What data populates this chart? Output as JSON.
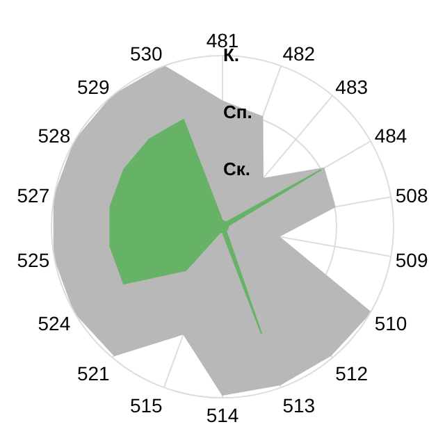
{
  "chart_data": {
    "type": "radar",
    "categories": [
      "481",
      "482",
      "483",
      "484",
      "508",
      "509",
      "510",
      "512",
      "513",
      "514",
      "515",
      "521",
      "524",
      "525",
      "527",
      "528",
      "529",
      "530"
    ],
    "series": [
      {
        "color": "#b8b8b8",
        "values": [
          2.2,
          2.05,
          1.1,
          2.05,
          2.0,
          1.0,
          3.0,
          2.95,
          2.95,
          2.95,
          2.0,
          2.95,
          3.0,
          3.0,
          3.0,
          3.0,
          3.0,
          3.0
        ]
      },
      {
        "color": "#66b266",
        "values": [
          0.1,
          0.1,
          0.1,
          2.0,
          0.1,
          0.1,
          0.1,
          0.1,
          2.0,
          0.1,
          0.1,
          1.0,
          2.0,
          2.0,
          2.0,
          2.0,
          2.0,
          2.0
        ]
      }
    ],
    "ylim": [
      0,
      3
    ],
    "yticks": [
      {
        "value": 1,
        "label": "Ск."
      },
      {
        "value": 2,
        "label": "Сп."
      },
      {
        "value": 3,
        "label": "К."
      }
    ],
    "grid": true,
    "marker": "none"
  }
}
